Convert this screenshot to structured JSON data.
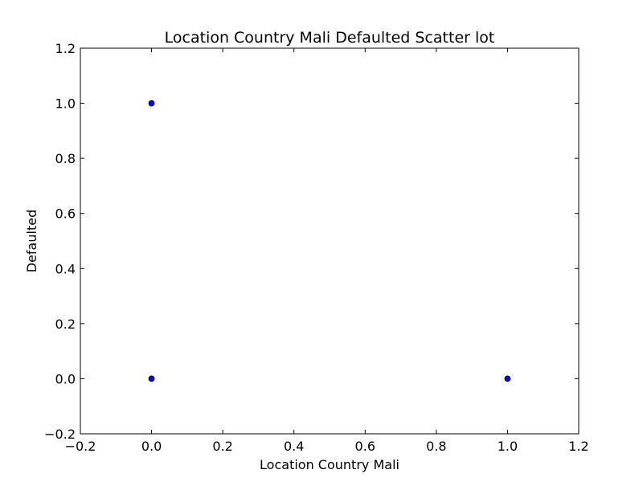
{
  "chart_data": {
    "type": "scatter",
    "title": "Location Country Mali Defaulted Scatter lot",
    "xlabel": "Location Country Mali",
    "ylabel": "Defaulted",
    "xlim": [
      -0.2,
      1.2
    ],
    "ylim": [
      -0.2,
      1.2
    ],
    "xticks": [
      -0.2,
      0.0,
      0.2,
      0.4,
      0.6,
      0.8,
      1.0,
      1.2
    ],
    "yticks": [
      -0.2,
      0.0,
      0.2,
      0.4,
      0.6,
      0.8,
      1.0,
      1.2
    ],
    "xtick_labels": [
      "−0.2",
      "0.0",
      "0.2",
      "0.4",
      "0.6",
      "0.8",
      "1.0",
      "1.2"
    ],
    "ytick_labels": [
      "−0.2",
      "0.0",
      "0.2",
      "0.4",
      "0.6",
      "0.8",
      "1.0",
      "1.2"
    ],
    "grid": false,
    "series": [
      {
        "x": [
          0,
          0,
          1
        ],
        "y": [
          1,
          0,
          0
        ],
        "color": "#0000ff",
        "edge_color": "#000000",
        "marker": "circle"
      }
    ]
  }
}
